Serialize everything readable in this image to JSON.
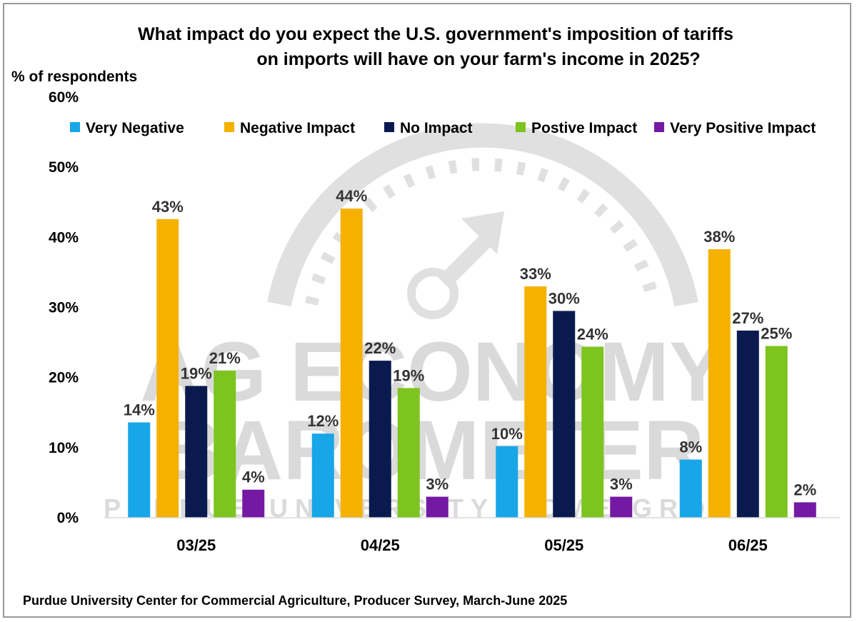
{
  "chart_data": {
    "type": "bar",
    "title": "What impact do you expect the U.S. government's imposition of tariffs on imports will have on your farm's income in 2025?",
    "title_lines": [
      "What impact do you expect the U.S. government's imposition of tariffs",
      "on imports will have on your farm's income in 2025?"
    ],
    "ylabel": "% of respondents",
    "xlabel": "",
    "ylim": [
      0,
      60
    ],
    "yticks": [
      0,
      10,
      20,
      30,
      40,
      50,
      60
    ],
    "ytick_labels": [
      "0%",
      "10%",
      "20%",
      "30%",
      "40%",
      "50%",
      "60%"
    ],
    "grid": false,
    "legend_position": "top",
    "categories": [
      "03/25",
      "04/25",
      "05/25",
      "06/25"
    ],
    "series": [
      {
        "name": "Very Negative",
        "color": "#17a6e8",
        "values": [
          13.6,
          12.0,
          10.2,
          8.3
        ],
        "labels": [
          "14%",
          "12%",
          "10%",
          "8%"
        ]
      },
      {
        "name": "Negative Impact",
        "color": "#f5b100",
        "values": [
          42.6,
          44.1,
          33.0,
          38.3
        ],
        "labels": [
          "43%",
          "44%",
          "33%",
          "38%"
        ]
      },
      {
        "name": "No Impact",
        "color": "#0b1a4e",
        "values": [
          18.8,
          22.4,
          29.5,
          26.7
        ],
        "labels": [
          "19%",
          "22%",
          "30%",
          "27%"
        ]
      },
      {
        "name": "Postive Impact",
        "color": "#7dc41f",
        "values": [
          21.0,
          18.5,
          24.4,
          24.5
        ],
        "labels": [
          "21%",
          "19%",
          "24%",
          "25%"
        ]
      },
      {
        "name": "Very Positive Impact",
        "color": "#7419a4",
        "values": [
          4.0,
          3.0,
          3.0,
          2.2
        ],
        "labels": [
          "4%",
          "3%",
          "3%",
          "2%"
        ]
      }
    ],
    "source": "Purdue University Center for Commercial Agriculture, Producer Survey, March-June 2025"
  },
  "watermark": {
    "line1": "AG ECONOMY",
    "line2": "BAROMETER",
    "line3": "PURDUE UNIVERSITY • CME GROUP",
    "color": "#bdbdbd"
  }
}
